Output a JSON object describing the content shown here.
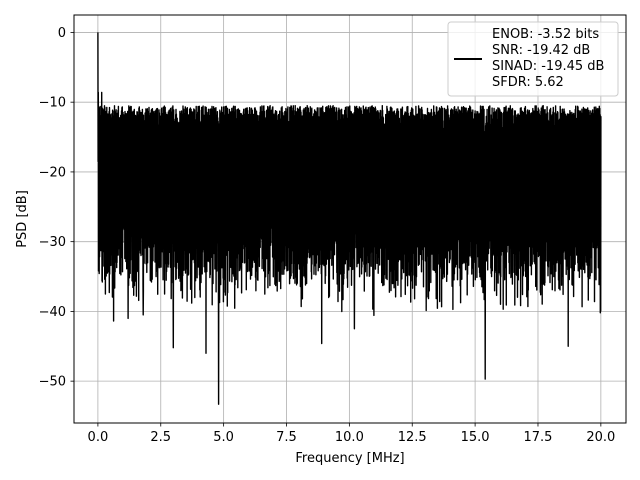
{
  "chart_data": {
    "type": "line",
    "xlabel": "Frequency [MHz]",
    "ylabel": "PSD [dB]",
    "xlim": [
      -0.95,
      21.0
    ],
    "ylim": [
      -56,
      2.5
    ],
    "xticks": [
      {
        "value": 0.0,
        "label": "0.0"
      },
      {
        "value": 2.5,
        "label": "2.5"
      },
      {
        "value": 5.0,
        "label": "5.0"
      },
      {
        "value": 7.5,
        "label": "7.5"
      },
      {
        "value": 10.0,
        "label": "10.0"
      },
      {
        "value": 12.5,
        "label": "12.5"
      },
      {
        "value": 15.0,
        "label": "15.0"
      },
      {
        "value": 17.5,
        "label": "17.5"
      },
      {
        "value": 20.0,
        "label": "20.0"
      }
    ],
    "yticks": [
      {
        "value": 0,
        "label": "0"
      },
      {
        "value": -10,
        "label": "−10"
      },
      {
        "value": -20,
        "label": "−20"
      },
      {
        "value": -30,
        "label": "−30"
      },
      {
        "value": -40,
        "label": "−40"
      },
      {
        "value": -50,
        "label": "−50"
      }
    ],
    "grid": true,
    "legend_position": "top-right",
    "legend_lines": [
      "ENOB: -3.52 bits",
      "SNR: -19.42 dB",
      "SINAD: -19.45 dB",
      "SFDR: 5.62"
    ],
    "series_color": "#000000",
    "series": [
      {
        "noise_model": "dense noise floor",
        "x_start": 0.0,
        "x_end": 20.0,
        "floor_db": -22,
        "ripple_db": 6,
        "trough_db": -32,
        "peak_db": 0,
        "notable_points": [
          {
            "x": 0.0,
            "y": 0.0
          },
          {
            "x": 0.15,
            "y": -8.6
          },
          {
            "x": 0.3,
            "y": -37.5
          },
          {
            "x": 1.2,
            "y": -41.0
          },
          {
            "x": 1.8,
            "y": -40.5
          },
          {
            "x": 3.0,
            "y": -45.2
          },
          {
            "x": 4.3,
            "y": -46.0
          },
          {
            "x": 4.8,
            "y": -53.3
          },
          {
            "x": 8.9,
            "y": -44.6
          },
          {
            "x": 10.2,
            "y": -42.5
          },
          {
            "x": 15.4,
            "y": -49.7
          },
          {
            "x": 18.7,
            "y": -45.0
          }
        ]
      }
    ]
  }
}
